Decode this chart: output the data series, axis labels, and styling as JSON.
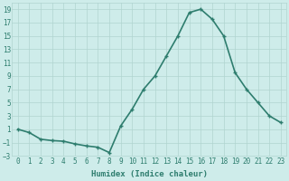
{
  "x": [
    0,
    1,
    2,
    3,
    4,
    5,
    6,
    7,
    8,
    9,
    10,
    11,
    12,
    13,
    14,
    15,
    16,
    17,
    18,
    19,
    20,
    21,
    22,
    23
  ],
  "y": [
    1,
    0.5,
    -0.5,
    -0.7,
    -0.8,
    -1.2,
    -1.5,
    -1.7,
    -2.5,
    1.5,
    4.0,
    7.0,
    9.0,
    12.0,
    15.0,
    18.5,
    19.0,
    17.5,
    15.0,
    9.5,
    7.0,
    5.0,
    3.0,
    2.0
  ],
  "line_color": "#2e7d6e",
  "marker": "+",
  "marker_size": 3,
  "bg_color": "#ceecea",
  "grid_color": "#b0d4d0",
  "xlabel": "Humidex (Indice chaleur)",
  "ylim": [
    -3,
    20
  ],
  "xlim": [
    -0.5,
    23.5
  ],
  "yticks": [
    -3,
    -1,
    1,
    3,
    5,
    7,
    9,
    11,
    13,
    15,
    17,
    19
  ],
  "xticks": [
    0,
    1,
    2,
    3,
    4,
    5,
    6,
    7,
    8,
    9,
    10,
    11,
    12,
    13,
    14,
    15,
    16,
    17,
    18,
    19,
    20,
    21,
    22,
    23
  ],
  "font_color": "#2e7d6e",
  "xlabel_fontsize": 6.5,
  "tick_fontsize": 5.5,
  "line_width": 1.2,
  "marker_edge_width": 1.0
}
